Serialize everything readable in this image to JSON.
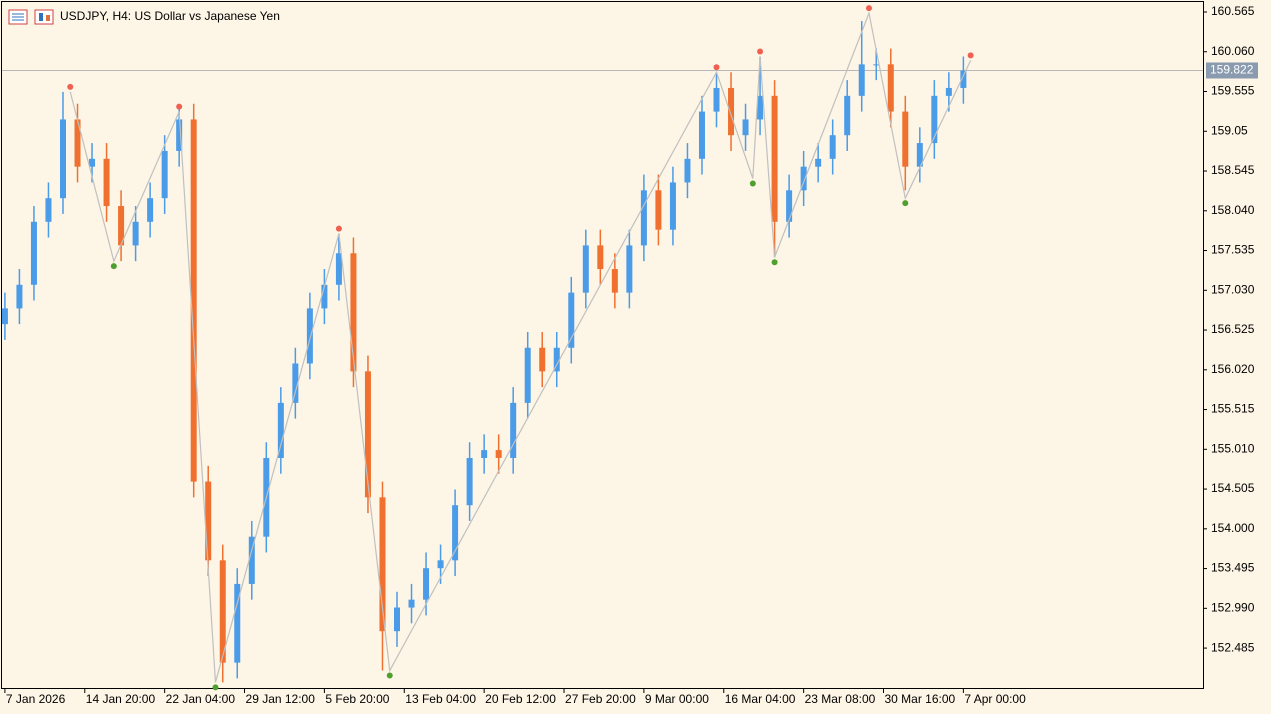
{
  "chart_data": {
    "type": "ohlc",
    "title": "USDJPY, H4:  US Dollar vs Japanese Yen",
    "x": [
      0,
      2,
      4,
      6,
      8,
      10,
      12,
      14,
      16,
      18,
      20,
      22,
      24,
      26,
      28,
      30,
      32,
      34,
      36,
      38,
      40,
      42,
      44,
      46,
      48,
      50,
      52,
      54,
      56,
      58,
      60,
      62,
      64,
      66,
      68,
      70,
      72,
      74,
      76,
      78,
      80,
      82,
      84,
      86,
      88,
      90,
      92,
      94,
      96,
      98,
      100,
      102,
      104,
      106,
      108,
      110,
      112,
      114,
      116,
      118,
      120,
      122,
      124,
      126,
      128,
      130,
      132
    ],
    "open": [
      156.6,
      156.8,
      157.1,
      157.9,
      158.2,
      159.2,
      158.6,
      158.7,
      158.1,
      157.6,
      157.9,
      158.2,
      158.8,
      159.2,
      154.6,
      153.6,
      152.3,
      153.3,
      153.9,
      154.9,
      155.6,
      156.1,
      156.8,
      157.1,
      157.5,
      156.0,
      154.4,
      152.7,
      153.0,
      153.1,
      153.5,
      153.6,
      154.3,
      154.9,
      155.0,
      154.9,
      155.6,
      156.3,
      156.0,
      156.3,
      157.0,
      157.6,
      157.3,
      157.0,
      157.6,
      158.3,
      157.8,
      158.4,
      158.7,
      159.3,
      159.6,
      159.0,
      159.2,
      159.5,
      157.9,
      158.3,
      158.6,
      158.7,
      159.0,
      159.5,
      159.9,
      159.9,
      159.3,
      158.6,
      158.9,
      159.5,
      159.6
    ],
    "high": [
      157.0,
      157.3,
      158.1,
      158.4,
      159.55,
      159.4,
      158.9,
      158.9,
      158.3,
      158.1,
      158.4,
      159.0,
      159.35,
      159.4,
      154.8,
      153.8,
      153.5,
      154.1,
      155.1,
      155.8,
      156.3,
      157.0,
      157.3,
      157.75,
      157.7,
      156.2,
      154.6,
      153.2,
      153.3,
      153.7,
      153.8,
      154.5,
      155.1,
      155.2,
      155.2,
      155.8,
      156.5,
      156.5,
      156.5,
      157.2,
      157.8,
      157.8,
      157.5,
      157.8,
      158.5,
      158.5,
      158.6,
      158.9,
      159.5,
      159.8,
      159.8,
      159.4,
      160.0,
      159.7,
      158.5,
      158.8,
      158.9,
      159.2,
      159.7,
      160.45,
      160.1,
      160.1,
      159.5,
      159.1,
      159.7,
      159.8,
      160.0
    ],
    "low": [
      156.4,
      156.6,
      156.9,
      157.7,
      158.0,
      158.4,
      158.4,
      157.9,
      157.4,
      157.4,
      157.7,
      158.0,
      158.6,
      154.4,
      153.4,
      152.05,
      152.1,
      153.1,
      153.7,
      154.7,
      155.4,
      155.9,
      156.6,
      156.9,
      155.8,
      154.2,
      152.2,
      152.5,
      152.8,
      152.9,
      153.3,
      153.4,
      154.1,
      154.7,
      154.7,
      154.7,
      155.4,
      155.8,
      155.8,
      156.1,
      156.8,
      157.1,
      156.8,
      156.8,
      157.4,
      157.6,
      157.6,
      158.2,
      158.5,
      159.1,
      158.8,
      158.8,
      159.0,
      157.45,
      157.7,
      158.1,
      158.4,
      158.5,
      158.8,
      159.3,
      159.7,
      159.1,
      158.3,
      158.4,
      158.7,
      159.3,
      159.4
    ],
    "close": [
      156.8,
      157.1,
      157.9,
      158.2,
      159.2,
      158.6,
      158.7,
      158.1,
      157.6,
      157.9,
      158.2,
      158.8,
      159.2,
      154.6,
      153.6,
      152.3,
      153.3,
      153.9,
      154.9,
      155.6,
      156.1,
      156.8,
      157.1,
      157.5,
      156.0,
      154.4,
      152.7,
      153.0,
      153.1,
      153.5,
      153.6,
      154.3,
      154.9,
      155.0,
      154.9,
      155.6,
      156.3,
      156.0,
      156.3,
      157.0,
      157.6,
      157.3,
      157.0,
      157.6,
      158.3,
      157.8,
      158.4,
      158.7,
      159.3,
      159.6,
      159.0,
      159.2,
      159.5,
      157.9,
      158.3,
      158.6,
      158.7,
      159.0,
      159.5,
      159.9,
      159.9,
      159.3,
      158.6,
      158.9,
      159.5,
      159.6,
      159.82
    ],
    "up_color": "#4a9be8",
    "down_color": "#f07030",
    "zigzag": {
      "x": [
        9,
        15,
        24,
        29,
        46,
        53,
        98,
        103,
        104,
        106,
        119,
        124,
        133
      ],
      "values": [
        159.55,
        157.4,
        159.3,
        152.05,
        157.75,
        152.2,
        159.8,
        158.45,
        160.0,
        157.45,
        160.55,
        158.2,
        159.95
      ],
      "color": "#c0c0c0",
      "high_color": "#f06050",
      "low_color": "#50a030"
    },
    "current_price": 159.822,
    "current_label": "159.822",
    "xlim": [
      -0.4,
      165
    ],
    "xticks": [
      {
        "value": 0,
        "label": "7 Jan 2026"
      },
      {
        "value": 11,
        "label": "14 Jan 20:00"
      },
      {
        "value": 22,
        "label": "22 Jan 04:00"
      },
      {
        "value": 33,
        "label": "29 Jan 12:00"
      },
      {
        "value": 44,
        "label": "5 Feb 20:00"
      },
      {
        "value": 55,
        "label": "13 Feb 04:00"
      },
      {
        "value": 66,
        "label": "20 Feb 12:00"
      },
      {
        "value": 77,
        "label": "27 Feb 20:00"
      },
      {
        "value": 88,
        "label": "9 Mar 00:00"
      },
      {
        "value": 99,
        "label": "16 Mar 04:00"
      },
      {
        "value": 110,
        "label": "23 Mar 08:00"
      },
      {
        "value": 121,
        "label": "30 Mar 16:00"
      },
      {
        "value": 132,
        "label": "7 Apr 00:00"
      }
    ],
    "ylim": [
      151.978,
      160.692
    ],
    "yticks": [
      160.565,
      {
        "value": 160.06,
        "label": "160.060"
      },
      159.555,
      159.05,
      158.545,
      {
        "value": 158.04,
        "label": "158.040"
      },
      157.535,
      {
        "value": 157.03,
        "label": "157.030"
      },
      156.525,
      {
        "value": 156.02,
        "label": "156.020"
      },
      155.515,
      {
        "value": 155.01,
        "label": "155.010"
      },
      154.505,
      {
        "value": 154,
        "label": "154.000"
      },
      153.495,
      {
        "value": 152.99,
        "label": "152.990"
      },
      152.485
    ]
  }
}
